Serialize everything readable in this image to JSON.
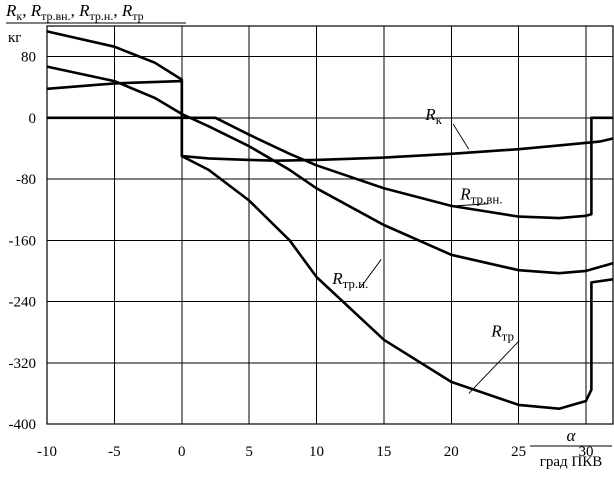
{
  "chart_data": {
    "type": "line",
    "title": "",
    "ylabel": {
      "parts": [
        {
          "main": "R",
          "sub": "к",
          "sep": ", "
        },
        {
          "main": "R",
          "sub": "тр.вн.",
          "sep": ", "
        },
        {
          "main": "R",
          "sub": "тр.н.",
          "sep": ", "
        },
        {
          "main": "R",
          "sub": "тр",
          "sep": ""
        }
      ],
      "unit": "кг"
    },
    "xlabel": {
      "symbol": "α",
      "unit": "град ПКВ"
    },
    "xlim": [
      -10,
      32
    ],
    "ylim": [
      -400,
      120
    ],
    "x_ticks": [
      -10,
      -5,
      0,
      5,
      10,
      15,
      20,
      25,
      30
    ],
    "y_ticks": [
      80,
      0,
      -80,
      -160,
      -240,
      -320,
      -400
    ],
    "grid": true,
    "series": [
      {
        "name": "Rк",
        "label": {
          "main": "R",
          "sub": "к"
        },
        "points": [
          [
            -10,
            0
          ],
          [
            0,
            0
          ],
          [
            0,
            -50
          ],
          [
            2,
            -53
          ],
          [
            5,
            -55
          ],
          [
            7,
            -56
          ],
          [
            10,
            -55
          ],
          [
            15,
            -52
          ],
          [
            20,
            -47
          ],
          [
            25,
            -41
          ],
          [
            28,
            -36
          ],
          [
            31,
            -31
          ],
          [
            32,
            -27
          ]
        ]
      },
      {
        "name": "Rтр.вн.",
        "label": {
          "main": "R",
          "sub": "тр.вн."
        },
        "points": [
          [
            -10,
            38
          ],
          [
            -5,
            45
          ],
          [
            0,
            48
          ],
          [
            0,
            0
          ],
          [
            2.5,
            0
          ],
          [
            5,
            -22
          ],
          [
            8,
            -47
          ],
          [
            10,
            -62
          ],
          [
            15,
            -92
          ],
          [
            20,
            -115
          ],
          [
            25,
            -129
          ],
          [
            28,
            -131
          ],
          [
            30,
            -128
          ],
          [
            30.4,
            -126
          ],
          [
            30.4,
            0
          ],
          [
            32,
            0
          ]
        ]
      },
      {
        "name": "Rтр.н.",
        "label": {
          "main": "R",
          "sub": "тр.н."
        },
        "points": [
          [
            -10,
            67
          ],
          [
            -5,
            48
          ],
          [
            -2,
            26
          ],
          [
            0,
            5
          ],
          [
            2,
            -11
          ],
          [
            5,
            -37
          ],
          [
            8,
            -68
          ],
          [
            10,
            -92
          ],
          [
            15,
            -140
          ],
          [
            20,
            -179
          ],
          [
            25,
            -199
          ],
          [
            28,
            -203
          ],
          [
            30,
            -200
          ],
          [
            32,
            -190
          ]
        ]
      },
      {
        "name": "Rтр",
        "label": {
          "main": "R",
          "sub": "тр"
        },
        "points": [
          [
            -10,
            113
          ],
          [
            -5,
            93
          ],
          [
            -2,
            72
          ],
          [
            0,
            50
          ],
          [
            0,
            -50
          ],
          [
            2,
            -68
          ],
          [
            5,
            -108
          ],
          [
            8,
            -160
          ],
          [
            10,
            -208
          ],
          [
            15,
            -290
          ],
          [
            20,
            -345
          ],
          [
            25,
            -375
          ],
          [
            28,
            -380
          ],
          [
            30,
            -370
          ],
          [
            30.4,
            -355
          ],
          [
            30.4,
            -215
          ],
          [
            32,
            -211
          ]
        ]
      }
    ],
    "annotations": [
      {
        "series": "Rк",
        "text": {
          "main": "R",
          "sub": "к"
        },
        "at": [
          19.4,
          -3
        ],
        "to": [
          21.3,
          -41
        ]
      },
      {
        "series": "Rтр.вн.",
        "text": {
          "main": "R",
          "sub": "тр.вн."
        },
        "at": [
          22,
          -107
        ],
        "to": [
          20.3,
          -115
        ]
      },
      {
        "series": "Rтр.н.",
        "text": {
          "main": "R",
          "sub": "тр.н."
        },
        "at": [
          12.5,
          -217
        ],
        "to": [
          14.8,
          -185
        ]
      },
      {
        "series": "Rтр",
        "text": {
          "main": "R",
          "sub": "тр"
        },
        "at": [
          24.3,
          -286
        ],
        "to": [
          21.3,
          -360
        ]
      }
    ]
  }
}
